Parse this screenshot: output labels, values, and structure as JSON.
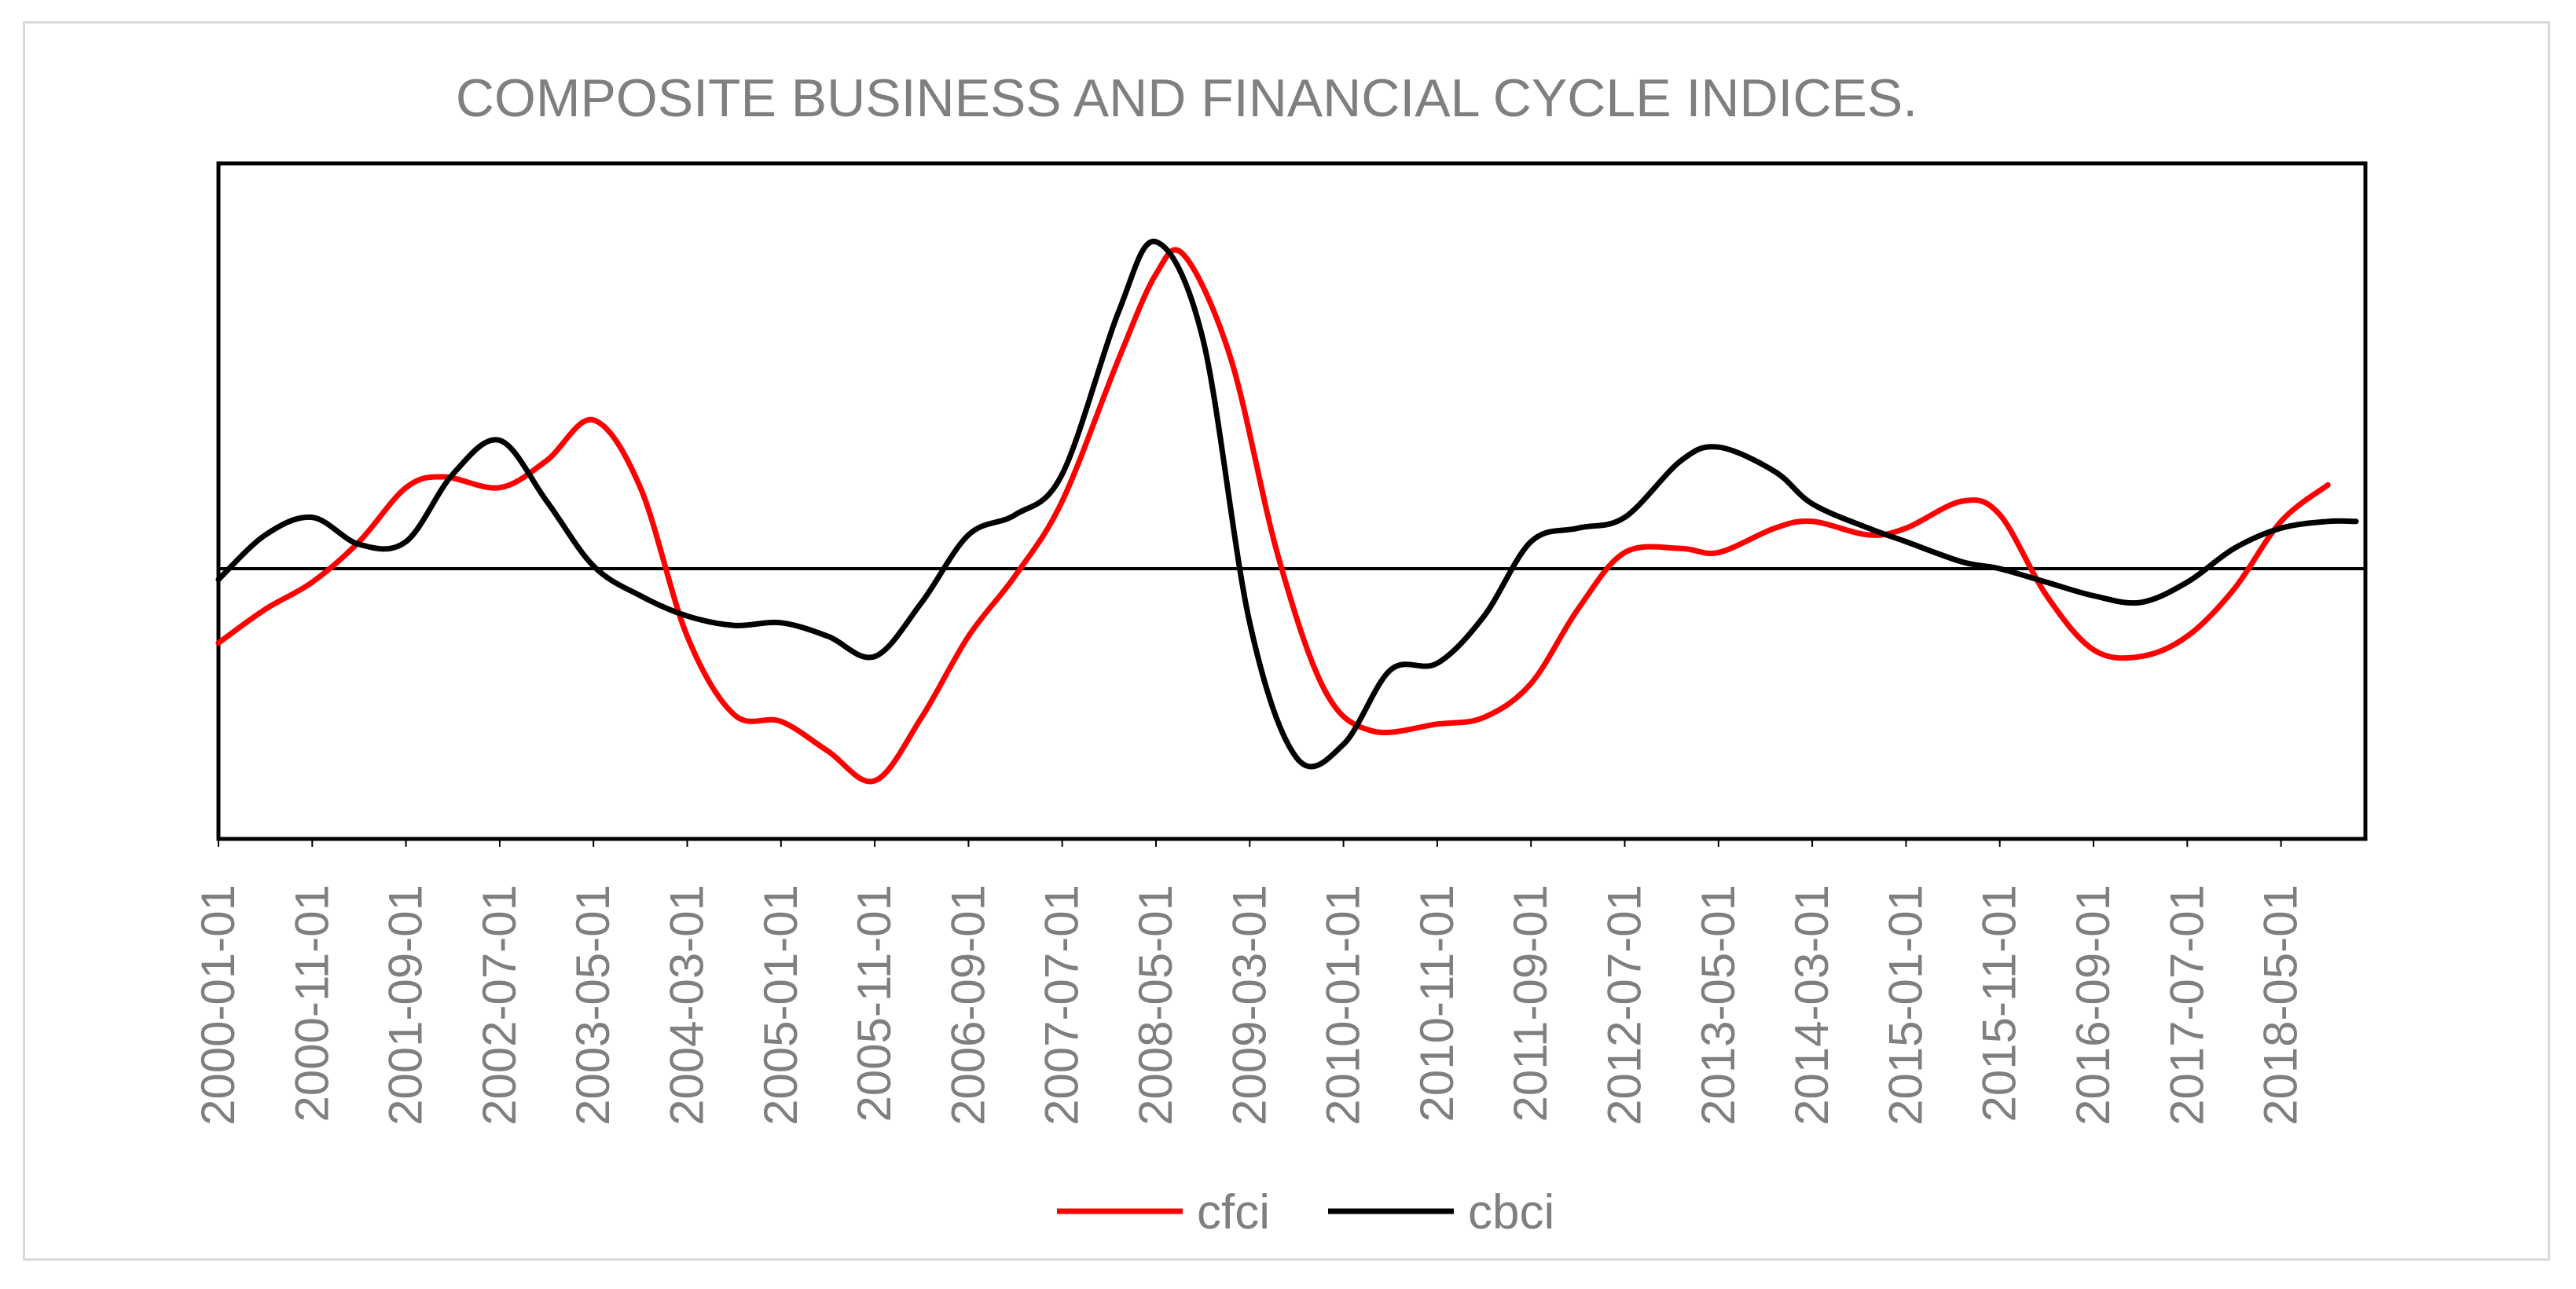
{
  "chart_data": {
    "type": "line",
    "title": "COMPOSITE BUSINESS AND FINANCIAL CYCLE INDICES.",
    "xlabel": "",
    "ylabel": "",
    "x_tick_labels": [
      "2000-01-01",
      "2000-11-01",
      "2001-09-01",
      "2002-07-01",
      "2003-05-01",
      "2004-03-01",
      "2005-01-01",
      "2005-11-01",
      "2006-09-01",
      "2007-07-01",
      "2008-05-01",
      "2009-03-01",
      "2010-01-01",
      "2010-11-01",
      "2011-09-01",
      "2012-07-01",
      "2013-05-01",
      "2014-03-01",
      "2015-01-01",
      "2015-11-01",
      "2016-09-01",
      "2017-07-01",
      "2018-05-01"
    ],
    "x_range": [
      "2000-01-01",
      "2019-02-01"
    ],
    "ylim": [
      -2.0,
      3.0
    ],
    "zero_line": true,
    "y_axis_labels_visible": false,
    "legend_position": "bottom",
    "series": [
      {
        "name": "cfci",
        "color": "#ff0000",
        "points": [
          [
            "2000-01-01",
            -0.55
          ],
          [
            "2000-06-01",
            -0.3
          ],
          [
            "2000-11-01",
            -0.1
          ],
          [
            "2001-04-01",
            0.2
          ],
          [
            "2001-09-01",
            0.6
          ],
          [
            "2002-01-01",
            0.68
          ],
          [
            "2002-07-01",
            0.6
          ],
          [
            "2002-12-01",
            0.8
          ],
          [
            "2003-05-01",
            1.1
          ],
          [
            "2003-10-01",
            0.6
          ],
          [
            "2004-03-01",
            -0.5
          ],
          [
            "2004-08-01",
            -1.08
          ],
          [
            "2005-01-01",
            -1.13
          ],
          [
            "2005-06-01",
            -1.35
          ],
          [
            "2005-11-01",
            -1.57
          ],
          [
            "2006-04-01",
            -1.1
          ],
          [
            "2006-09-01",
            -0.5
          ],
          [
            "2007-02-01",
            -0.05
          ],
          [
            "2007-07-01",
            0.5
          ],
          [
            "2008-01-01",
            1.55
          ],
          [
            "2008-05-01",
            2.18
          ],
          [
            "2008-08-01",
            2.32
          ],
          [
            "2009-01-01",
            1.55
          ],
          [
            "2009-06-01",
            0.1
          ],
          [
            "2009-11-01",
            -0.9
          ],
          [
            "2010-04-01",
            -1.2
          ],
          [
            "2010-11-01",
            -1.15
          ],
          [
            "2011-04-01",
            -1.1
          ],
          [
            "2011-09-01",
            -0.85
          ],
          [
            "2012-02-01",
            -0.3
          ],
          [
            "2012-07-01",
            0.12
          ],
          [
            "2013-01-01",
            0.15
          ],
          [
            "2013-05-01",
            0.12
          ],
          [
            "2013-11-01",
            0.3
          ],
          [
            "2014-03-01",
            0.35
          ],
          [
            "2014-09-01",
            0.25
          ],
          [
            "2015-01-01",
            0.3
          ],
          [
            "2015-07-01",
            0.5
          ],
          [
            "2015-11-01",
            0.4
          ],
          [
            "2016-04-01",
            -0.2
          ],
          [
            "2016-09-01",
            -0.6
          ],
          [
            "2017-02-01",
            -0.65
          ],
          [
            "2017-07-01",
            -0.5
          ],
          [
            "2017-12-01",
            -0.15
          ],
          [
            "2018-05-01",
            0.35
          ],
          [
            "2018-10-01",
            0.62
          ]
        ]
      },
      {
        "name": "cbci",
        "color": "#000000",
        "points": [
          [
            "2000-01-01",
            -0.08
          ],
          [
            "2000-06-01",
            0.25
          ],
          [
            "2000-11-01",
            0.38
          ],
          [
            "2001-04-01",
            0.18
          ],
          [
            "2001-09-01",
            0.2
          ],
          [
            "2002-02-01",
            0.7
          ],
          [
            "2002-07-01",
            0.95
          ],
          [
            "2002-12-01",
            0.5
          ],
          [
            "2003-05-01",
            0.02
          ],
          [
            "2003-10-01",
            -0.2
          ],
          [
            "2004-03-01",
            -0.35
          ],
          [
            "2004-08-01",
            -0.42
          ],
          [
            "2005-01-01",
            -0.4
          ],
          [
            "2005-06-01",
            -0.5
          ],
          [
            "2005-11-01",
            -0.65
          ],
          [
            "2006-04-01",
            -0.25
          ],
          [
            "2006-09-01",
            0.25
          ],
          [
            "2007-02-01",
            0.4
          ],
          [
            "2007-07-01",
            0.7
          ],
          [
            "2008-01-01",
            1.9
          ],
          [
            "2008-05-01",
            2.42
          ],
          [
            "2008-10-01",
            1.7
          ],
          [
            "2009-03-01",
            -0.4
          ],
          [
            "2009-08-01",
            -1.4
          ],
          [
            "2010-01-01",
            -1.3
          ],
          [
            "2010-06-01",
            -0.75
          ],
          [
            "2010-11-01",
            -0.7
          ],
          [
            "2011-04-01",
            -0.35
          ],
          [
            "2011-09-01",
            0.2
          ],
          [
            "2012-02-01",
            0.3
          ],
          [
            "2012-07-01",
            0.38
          ],
          [
            "2013-01-01",
            0.8
          ],
          [
            "2013-05-01",
            0.9
          ],
          [
            "2013-11-01",
            0.72
          ],
          [
            "2014-03-01",
            0.48
          ],
          [
            "2014-09-01",
            0.3
          ],
          [
            "2015-01-01",
            0.2
          ],
          [
            "2015-07-01",
            0.05
          ],
          [
            "2015-11-01",
            0.0
          ],
          [
            "2016-04-01",
            -0.1
          ],
          [
            "2016-09-01",
            -0.2
          ],
          [
            "2017-02-01",
            -0.25
          ],
          [
            "2017-07-01",
            -0.1
          ],
          [
            "2017-12-01",
            0.15
          ],
          [
            "2018-05-01",
            0.3
          ],
          [
            "2018-10-01",
            0.35
          ],
          [
            "2019-01-01",
            0.35
          ]
        ]
      }
    ]
  }
}
